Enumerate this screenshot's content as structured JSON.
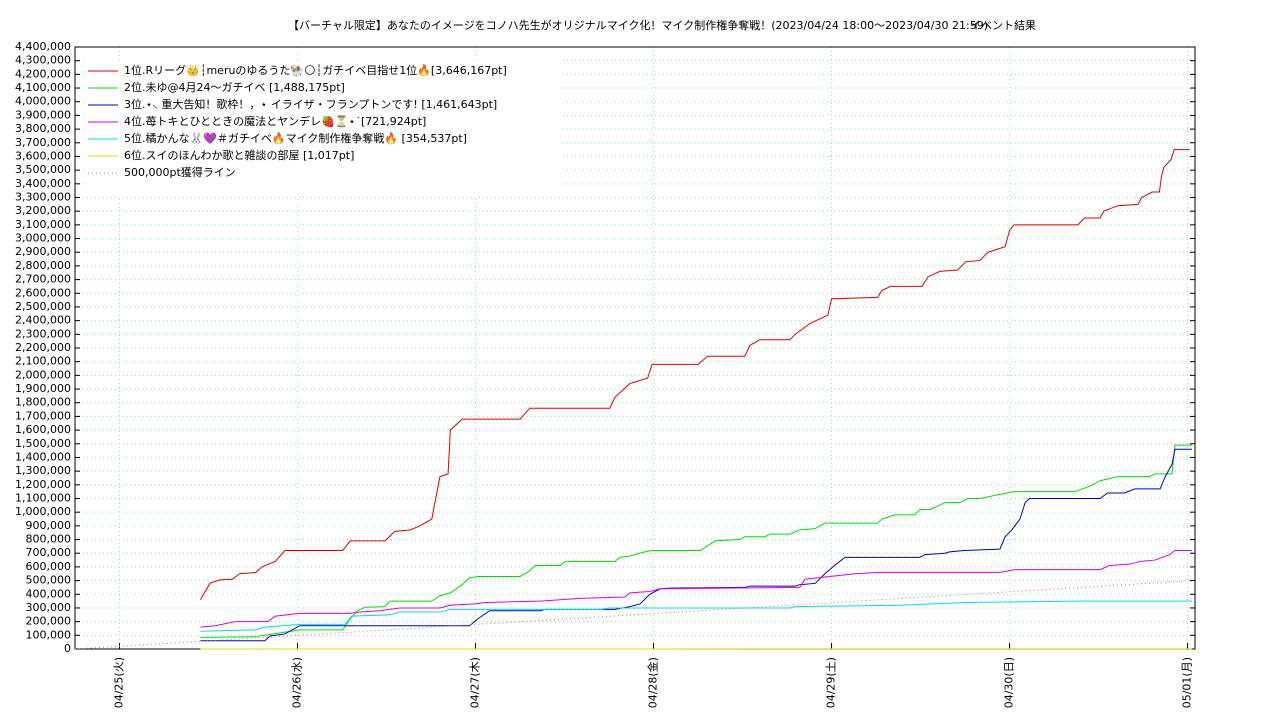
{
  "chart_data": {
    "type": "line",
    "title": "【バーチャル限定】あなたのイメージをコノハ先生がオリジナルマイク化！マイク制作権争奪戦！(2023/04/24 18:00～2023/04/30 21:59)",
    "subtitle": "イベント結果",
    "xlim": [
      0,
      151
    ],
    "xticks": [
      {
        "value": 6,
        "label": "04/25(火)"
      },
      {
        "value": 30,
        "label": "04/26(水)"
      },
      {
        "value": 54,
        "label": "04/27(木)"
      },
      {
        "value": 78,
        "label": "04/28(金)"
      },
      {
        "value": 102,
        "label": "04/29(土)"
      },
      {
        "value": 126,
        "label": "04/30(日)"
      },
      {
        "value": 150,
        "label": "05/01(月)"
      }
    ],
    "ylim": [
      0,
      4400000
    ],
    "yticks": [
      0,
      {
        "value": 100000,
        "label": "100,000"
      },
      {
        "value": 200000,
        "label": "200,000"
      },
      {
        "value": 300000,
        "label": "300,000"
      },
      {
        "value": 400000,
        "label": "400,000"
      },
      {
        "value": 500000,
        "label": "500,000"
      },
      {
        "value": 600000,
        "label": "600,000"
      },
      {
        "value": 700000,
        "label": "700,000"
      },
      {
        "value": 800000,
        "label": "800,000"
      },
      {
        "value": 900000,
        "label": "900,000"
      },
      {
        "value": 1000000,
        "label": "1,000,000"
      },
      {
        "value": 1100000,
        "label": "1,100,000"
      },
      {
        "value": 1200000,
        "label": "1,200,000"
      },
      {
        "value": 1300000,
        "label": "1,300,000"
      },
      {
        "value": 1400000,
        "label": "1,400,000"
      },
      {
        "value": 1500000,
        "label": "1,500,000"
      },
      {
        "value": 1600000,
        "label": "1,600,000"
      },
      {
        "value": 1700000,
        "label": "1,700,000"
      },
      {
        "value": 1800000,
        "label": "1,800,000"
      },
      {
        "value": 1900000,
        "label": "1,900,000"
      },
      {
        "value": 2000000,
        "label": "2,000,000"
      },
      {
        "value": 2100000,
        "label": "2,100,000"
      },
      {
        "value": 2200000,
        "label": "2,200,000"
      },
      {
        "value": 2300000,
        "label": "2,300,000"
      },
      {
        "value": 2400000,
        "label": "2,400,000"
      },
      {
        "value": 2500000,
        "label": "2,500,000"
      },
      {
        "value": 2600000,
        "label": "2,600,000"
      },
      {
        "value": 2700000,
        "label": "2,700,000"
      },
      {
        "value": 2800000,
        "label": "2,800,000"
      },
      {
        "value": 2900000,
        "label": "2,900,000"
      },
      {
        "value": 3000000,
        "label": "3,000,000"
      },
      {
        "value": 3100000,
        "label": "3,100,000"
      },
      {
        "value": 3200000,
        "label": "3,200,000"
      },
      {
        "value": 3300000,
        "label": "3,300,000"
      },
      {
        "value": 3400000,
        "label": "3,400,000"
      },
      {
        "value": 3500000,
        "label": "3,500,000"
      },
      {
        "value": 3600000,
        "label": "3,600,000"
      },
      {
        "value": 3700000,
        "label": "3,700,000"
      },
      {
        "value": 3800000,
        "label": "3,800,000"
      },
      {
        "value": 3900000,
        "label": "3,900,000"
      },
      {
        "value": 4000000,
        "label": "4,000,000"
      },
      {
        "value": 4100000,
        "label": "4,100,000"
      },
      {
        "value": 4200000,
        "label": "4,200,000"
      },
      {
        "value": 4300000,
        "label": "4,300,000"
      },
      {
        "value": 4400000,
        "label": "4,400,000"
      }
    ],
    "grid": true,
    "legend": "upper left",
    "series": [
      {
        "name": "1位.Rリーグ👑┆meruのゆるうた🐏🌕┆ガチイベ目指せ1位🔥[3,646,167pt]",
        "color": "#e00000",
        "x": [
          16.9,
          18.2,
          19.5,
          21.2,
          22.2,
          24.4,
          25.2,
          27.0,
          28.3,
          36.1,
          37.1,
          41.8,
          43.1,
          45.2,
          46.5,
          48.1,
          49.2,
          50.3,
          50.6,
          52.2,
          60.0,
          61.3,
          72.1,
          72.8,
          74.8,
          77.2,
          77.8,
          84.0,
          85.3,
          90.3,
          91.0,
          92.3,
          96.4,
          97.1,
          99.1,
          101.5,
          102.0,
          108.2,
          108.8,
          109.9,
          114.2,
          115.0,
          116.6,
          119.0,
          120.1,
          122.0,
          123.1,
          125.4,
          126.0,
          126.6,
          135.2,
          136.1,
          138.2,
          138.7,
          140.6,
          143.3,
          143.8,
          145.2,
          146.2,
          146.5,
          146.8,
          147.8,
          148.2,
          150.3
        ],
        "values": [
          360000,
          480000,
          505000,
          510000,
          550000,
          560000,
          600000,
          640000,
          720000,
          720000,
          790000,
          790000,
          860000,
          870000,
          900000,
          950000,
          1260000,
          1280000,
          1600000,
          1680000,
          1680000,
          1760000,
          1760000,
          1840000,
          1940000,
          1980000,
          2080000,
          2080000,
          2140000,
          2140000,
          2220000,
          2260000,
          2260000,
          2300000,
          2380000,
          2440000,
          2560000,
          2570000,
          2620000,
          2650000,
          2650000,
          2720000,
          2760000,
          2770000,
          2830000,
          2840000,
          2900000,
          2940000,
          3060000,
          3100000,
          3100000,
          3150000,
          3150000,
          3200000,
          3240000,
          3250000,
          3300000,
          3340000,
          3340000,
          3460000,
          3520000,
          3580000,
          3650000,
          3650000
        ]
      },
      {
        "name": "2位.未ゆ@4月24〜ガチイベ [1,488,175pt]",
        "color": "#00e000",
        "x": [
          16.9,
          24.3,
          30.3,
          36.1,
          37.1,
          38.1,
          39.1,
          41.8,
          42.5,
          48.1,
          49.2,
          50.6,
          52.2,
          53.2,
          54.3,
          60.0,
          61.3,
          62.0,
          65.4,
          66.1,
          72.8,
          73.5,
          74.8,
          76.8,
          77.8,
          84.3,
          86.3,
          89.6,
          90.3,
          93.0,
          93.7,
          96.4,
          97.7,
          99.8,
          101.1,
          108.2,
          108.8,
          110.5,
          113.2,
          113.9,
          115.3,
          117.3,
          119.3,
          120.4,
          122.0,
          124.7,
          126.7,
          134.8,
          136.8,
          138.2,
          140.6,
          144.9,
          145.6,
          147.9,
          148.3,
          150.6
        ],
        "values": [
          85000,
          90000,
          140000,
          140000,
          220000,
          280000,
          305000,
          310000,
          350000,
          350000,
          390000,
          410000,
          470000,
          520000,
          530000,
          530000,
          570000,
          610000,
          610000,
          640000,
          640000,
          670000,
          680000,
          710000,
          720000,
          720000,
          790000,
          800000,
          820000,
          820000,
          840000,
          840000,
          870000,
          880000,
          920000,
          920000,
          950000,
          980000,
          980000,
          1020000,
          1020000,
          1070000,
          1070000,
          1100000,
          1100000,
          1130000,
          1150000,
          1150000,
          1190000,
          1230000,
          1260000,
          1260000,
          1280000,
          1280000,
          1490000,
          1490000
        ]
      },
      {
        "name": "3位.⋆⸜ 重大告知！歌枠！，⋆ イライザ・フランプトンです! [1,461,643pt]",
        "color": "#0000d0",
        "x": [
          16.9,
          25.6,
          26.3,
          28.3,
          30.3,
          31.7,
          53.2,
          54.3,
          55.9,
          62.7,
          63.4,
          72.8,
          74.8,
          76.2,
          77.5,
          78.9,
          80.2,
          90.3,
          91.0,
          97.1,
          97.7,
          99.8,
          101.1,
          102.4,
          103.8,
          113.9,
          114.6,
          117.3,
          117.9,
          119.9,
          124.7,
          125.4,
          126.3,
          127.4,
          128.1,
          128.7,
          138.2,
          139.2,
          141.5,
          142.9,
          146.3,
          146.9,
          147.9,
          148.3,
          150.6
        ],
        "values": [
          60000,
          60000,
          95000,
          110000,
          170000,
          170000,
          170000,
          220000,
          280000,
          280000,
          290000,
          290000,
          310000,
          330000,
          400000,
          440000,
          445000,
          450000,
          460000,
          460000,
          470000,
          480000,
          550000,
          610000,
          670000,
          670000,
          690000,
          700000,
          710000,
          720000,
          730000,
          820000,
          870000,
          950000,
          1070000,
          1100000,
          1100000,
          1140000,
          1140000,
          1170000,
          1170000,
          1250000,
          1350000,
          1460000,
          1460000
        ]
      },
      {
        "name": "4位.苺トキとひとときの魔法とヤンデレ🍓⏳⋆˙[721,924pt]",
        "color": "#e000e0",
        "x": [
          16.9,
          18.9,
          21.6,
          26.0,
          27.0,
          30.3,
          37.1,
          38.4,
          41.1,
          43.8,
          49.2,
          50.6,
          53.9,
          55.3,
          62.7,
          68.1,
          74.1,
          74.8,
          77.5,
          78.9,
          97.7,
          98.4,
          101.8,
          105.1,
          108.5,
          124.7,
          126.7,
          138.2,
          139.5,
          142.2,
          143.6,
          145.6,
          147.6,
          148.3,
          150.6
        ],
        "values": [
          160000,
          170000,
          200000,
          200000,
          240000,
          260000,
          260000,
          270000,
          280000,
          300000,
          300000,
          320000,
          330000,
          340000,
          350000,
          370000,
          380000,
          410000,
          420000,
          440000,
          450000,
          510000,
          530000,
          550000,
          560000,
          560000,
          580000,
          580000,
          610000,
          620000,
          640000,
          650000,
          690000,
          720000,
          720000
        ]
      },
      {
        "name": "5位.橘かんな🐰💜＃ガチイベ🔥マイク制作権争奪戦🔥 [354,537pt]",
        "color": "#00e0e0",
        "x": [
          16.9,
          24.3,
          25.6,
          30.3,
          36.4,
          37.3,
          42.5,
          43.8,
          49.2,
          50.6,
          70.8,
          72.1,
          96.4,
          97.1,
          111.2,
          120.0,
          135.5,
          150.6
        ],
        "values": [
          130000,
          140000,
          160000,
          180000,
          180000,
          240000,
          250000,
          270000,
          270000,
          290000,
          290000,
          300000,
          300000,
          310000,
          320000,
          340000,
          350000,
          350000
        ]
      },
      {
        "name": "6位.スイのほんわか歌と雑談の部屋 [1,017pt]",
        "color": "#e0e000",
        "x": [
          16.9,
          150.6
        ],
        "values": [
          0,
          1017
        ]
      },
      {
        "name": "500,000pt獲得ライン",
        "color": "#c08060",
        "dash": true,
        "x": [
          0,
          150.6
        ],
        "values": [
          0,
          500000
        ]
      }
    ]
  }
}
